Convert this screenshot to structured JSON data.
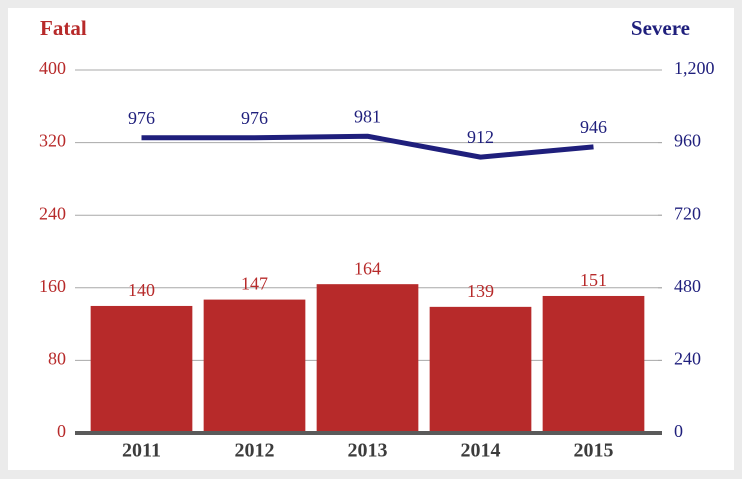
{
  "chart_data": {
    "type": "bar",
    "ylabel": "Fatal",
    "y2label": "Severe",
    "categories": [
      "2011",
      "2012",
      "2013",
      "2014",
      "2015"
    ],
    "series": [
      {
        "name": "Fatal",
        "type": "bar",
        "color": "#b72a2a",
        "values": [
          140,
          147,
          164,
          139,
          151
        ]
      },
      {
        "name": "Severe",
        "type": "line",
        "axis": "y2",
        "color": "#1f1f7c",
        "values": [
          976,
          976,
          981,
          912,
          946
        ]
      }
    ],
    "ylim": [
      0,
      400
    ],
    "yticks": [
      0,
      80,
      160,
      240,
      320,
      400
    ],
    "y2lim": [
      0,
      1200
    ],
    "y2ticks": [
      0,
      240,
      480,
      720,
      960,
      {
        "value": 1200,
        "label": "1,200"
      }
    ],
    "grid": true
  }
}
